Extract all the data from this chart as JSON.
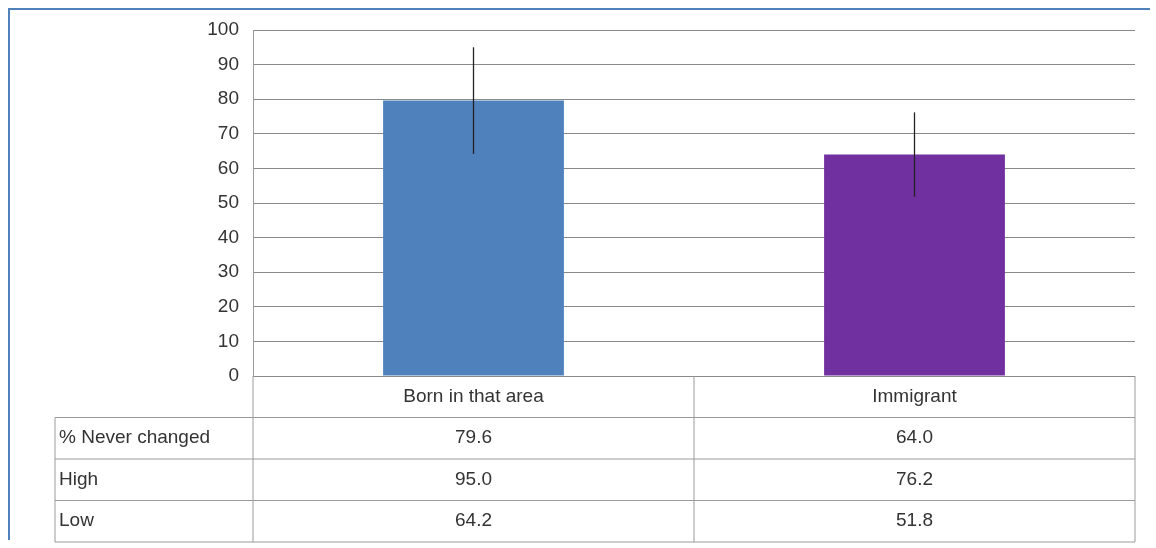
{
  "chart_data": {
    "type": "bar",
    "categories": [
      "Born in that area",
      "Immigrant"
    ],
    "series": [
      {
        "name": "% Never changed",
        "colors": [
          "#4f81bd",
          "#7030a0"
        ],
        "values": [
          79.6,
          64.0
        ],
        "value_labels": [
          "79.6",
          "64.0"
        ],
        "errors": [
          [
            64.2,
            95.0
          ],
          [
            51.8,
            76.2
          ]
        ]
      }
    ],
    "annotations": [
      "High",
      "95.0",
      "76.2",
      "Low",
      "64.2",
      "51.8"
    ],
    "ylim": [
      0,
      100
    ],
    "yticks": [
      0,
      10,
      20,
      30,
      40,
      50,
      60,
      70,
      80,
      90,
      100
    ],
    "grid": "y",
    "legend": false,
    "data_labels": true
  }
}
